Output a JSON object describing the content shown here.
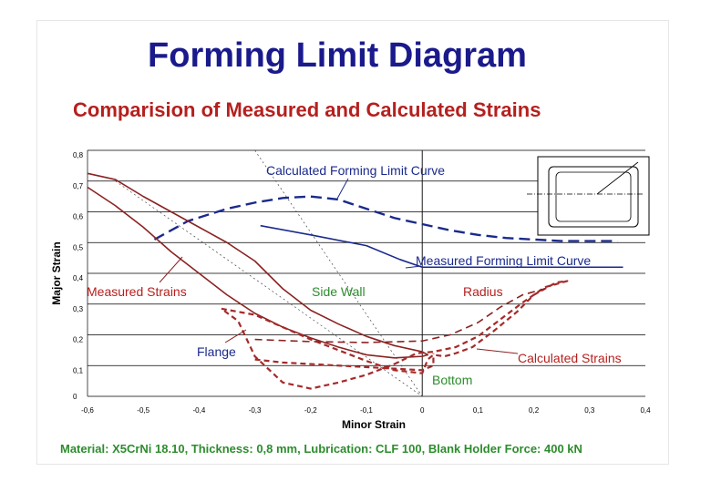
{
  "header": {
    "title": "Forming Limit Diagram",
    "subtitle": "Comparision of Measured and Calculated Strains",
    "footer": "Material: X5CrNi 18.10, Thickness: 0,8 mm, Lubrication: CLF 100, Blank Holder Force: 400 kN"
  },
  "colors": {
    "title": "#1a1a8c",
    "subtitle": "#b5201e",
    "footer": "#2d8c2d",
    "calculated_flc": "#1a2a8c",
    "measured_flc": "#1a2a8c",
    "measured_strains": "#8b2323",
    "calculated_strains": "#a52a2a",
    "annotation_blue": "#1a2a8c",
    "annotation_red": "#b5201e",
    "annotation_green": "#2d8c2d"
  },
  "chart_data": {
    "type": "line",
    "xlabel": "Minor Strain",
    "ylabel": "Major Strain",
    "xlim": [
      -0.6,
      0.4
    ],
    "ylim": [
      0,
      0.8
    ],
    "x_ticks": [
      -0.6,
      -0.5,
      -0.4,
      -0.3,
      -0.2,
      -0.1,
      0,
      0.1,
      0.2,
      0.3,
      0.4
    ],
    "x_tick_labels": [
      "-0,6",
      "-0,5",
      "-0,4",
      "-0,3",
      "-0,2",
      "-0,1",
      "0",
      "0,1",
      "0,2",
      "0,3",
      "0,4"
    ],
    "y_ticks": [
      0,
      0.1,
      0.2,
      0.3,
      0.4,
      0.5,
      0.6,
      0.7,
      0.8
    ],
    "y_tick_labels": [
      "0",
      "0,1",
      "0,2",
      "0,3",
      "0,4",
      "0,5",
      "0,6",
      "0,7",
      "0,8"
    ],
    "grid": "horizontal",
    "series": [
      {
        "name": "Calculated Forming Limit Curve",
        "style": "long-dash",
        "color": "#1a2a8c",
        "points": [
          [
            -0.48,
            0.51
          ],
          [
            -0.42,
            0.57
          ],
          [
            -0.35,
            0.61
          ],
          [
            -0.3,
            0.63
          ],
          [
            -0.25,
            0.645
          ],
          [
            -0.2,
            0.65
          ],
          [
            -0.15,
            0.64
          ],
          [
            -0.1,
            0.61
          ],
          [
            -0.05,
            0.58
          ],
          [
            0,
            0.56
          ],
          [
            0.05,
            0.54
          ],
          [
            0.1,
            0.525
          ],
          [
            0.15,
            0.515
          ],
          [
            0.2,
            0.51
          ],
          [
            0.25,
            0.505
          ],
          [
            0.3,
            0.505
          ],
          [
            0.35,
            0.505
          ]
        ]
      },
      {
        "name": "Measured Forming Limit Curve",
        "style": "solid",
        "color": "#1a2a8c",
        "points": [
          [
            -0.29,
            0.555
          ],
          [
            -0.2,
            0.525
          ],
          [
            -0.1,
            0.49
          ],
          [
            -0.04,
            0.445
          ],
          [
            0,
            0.42
          ],
          [
            0.1,
            0.42
          ],
          [
            0.2,
            0.42
          ],
          [
            0.3,
            0.42
          ],
          [
            0.36,
            0.42
          ]
        ]
      },
      {
        "name": "Measured Strains",
        "style": "solid",
        "color": "#8b2323",
        "points": [
          [
            -0.6,
            0.725
          ],
          [
            -0.55,
            0.705
          ],
          [
            -0.5,
            0.65
          ],
          [
            -0.45,
            0.6
          ],
          [
            -0.4,
            0.55
          ],
          [
            -0.35,
            0.5
          ],
          [
            -0.3,
            0.44
          ],
          [
            -0.25,
            0.35
          ],
          [
            -0.2,
            0.28
          ],
          [
            -0.15,
            0.235
          ],
          [
            -0.1,
            0.195
          ],
          [
            -0.05,
            0.165
          ],
          [
            0,
            0.145
          ],
          [
            0.01,
            0.135
          ],
          [
            0,
            0.13
          ],
          [
            -0.05,
            0.125
          ],
          [
            -0.1,
            0.135
          ],
          [
            -0.15,
            0.16
          ],
          [
            -0.2,
            0.19
          ],
          [
            -0.25,
            0.225
          ],
          [
            -0.3,
            0.27
          ],
          [
            -0.35,
            0.33
          ],
          [
            -0.4,
            0.4
          ],
          [
            -0.45,
            0.47
          ],
          [
            -0.5,
            0.55
          ],
          [
            -0.55,
            0.62
          ],
          [
            -0.6,
            0.68
          ]
        ]
      },
      {
        "name": "Calculated Strains",
        "style": "short-dash",
        "color": "#a52a2a",
        "points": [
          [
            -0.36,
            0.285
          ],
          [
            -0.3,
            0.265
          ],
          [
            -0.25,
            0.225
          ],
          [
            -0.2,
            0.185
          ],
          [
            -0.15,
            0.15
          ],
          [
            -0.1,
            0.115
          ],
          [
            -0.05,
            0.085
          ],
          [
            0,
            0.075
          ],
          [
            0.01,
            0.12
          ],
          [
            0.02,
            0.135
          ],
          [
            0.04,
            0.13
          ],
          [
            0.06,
            0.14
          ],
          [
            0.09,
            0.16
          ],
          [
            0.13,
            0.215
          ],
          [
            0.17,
            0.275
          ],
          [
            0.2,
            0.33
          ],
          [
            0.24,
            0.37
          ],
          [
            0.26,
            0.375
          ],
          [
            0.22,
            0.355
          ],
          [
            0.18,
            0.305
          ],
          [
            0.14,
            0.25
          ],
          [
            0.1,
            0.195
          ],
          [
            0.06,
            0.16
          ],
          [
            0.02,
            0.145
          ],
          [
            -0.01,
            0.14
          ],
          [
            -0.05,
            0.105
          ],
          [
            -0.1,
            0.07
          ],
          [
            -0.15,
            0.045
          ],
          [
            -0.2,
            0.025
          ],
          [
            -0.25,
            0.045
          ],
          [
            -0.3,
            0.13
          ],
          [
            -0.33,
            0.245
          ],
          [
            -0.36,
            0.285
          ]
        ]
      },
      {
        "name": "Bottom",
        "style": "short-dash",
        "color": "#a52a2a",
        "points": [
          [
            -0.3,
            0.12
          ],
          [
            -0.25,
            0.11
          ],
          [
            -0.15,
            0.1
          ],
          [
            -0.05,
            0.09
          ],
          [
            0,
            0.085
          ],
          [
            0.02,
            0.1
          ],
          [
            0.02,
            0.14
          ]
        ]
      },
      {
        "name": "Radius",
        "style": "dashed",
        "color": "#8b2323",
        "points": [
          [
            -0.3,
            0.185
          ],
          [
            -0.2,
            0.178
          ],
          [
            -0.1,
            0.175
          ],
          [
            0,
            0.18
          ],
          [
            0.05,
            0.2
          ],
          [
            0.1,
            0.24
          ],
          [
            0.14,
            0.29
          ],
          [
            0.18,
            0.33
          ],
          [
            0.22,
            0.35
          ]
        ]
      }
    ],
    "guide_lines": [
      {
        "name": "uniaxial-guide",
        "points": [
          [
            -0.3,
            0.8
          ],
          [
            0,
            0
          ]
        ]
      },
      {
        "name": "plane-strain-guide",
        "points": [
          [
            -0.55,
            0.7
          ],
          [
            0,
            0
          ]
        ]
      }
    ],
    "annotations": [
      {
        "key": "calculated_flc",
        "text": "Calculated Forming Limit Curve"
      },
      {
        "key": "measured_flc",
        "text": "Measured Forming Limit Curve"
      },
      {
        "key": "measured_strains",
        "text": "Measured Strains"
      },
      {
        "key": "side_wall",
        "text": "Side Wall"
      },
      {
        "key": "radius",
        "text": "Radius"
      },
      {
        "key": "flange",
        "text": "Flange"
      },
      {
        "key": "calculated_strains",
        "text": "Calculated Strains"
      },
      {
        "key": "bottom",
        "text": "Bottom"
      }
    ]
  }
}
